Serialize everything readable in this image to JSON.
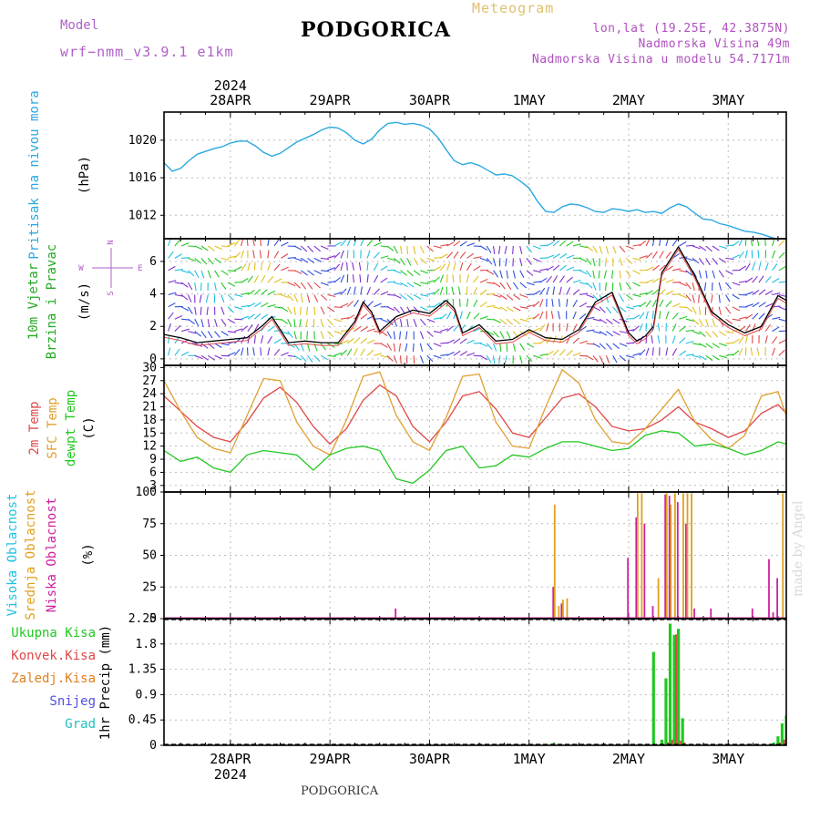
{
  "header": {
    "title": "PODGORICA",
    "subtitle": "Meteogram",
    "model_label": "Model",
    "model_name": "wrf−nmm_v3.9.1  e1km",
    "location_lines": [
      "lon,lat (19.25E, 42.3875N)",
      "Nadmorska Visina 49m",
      "Nadmorska Visina u modelu 54.7171m"
    ],
    "bottom_station": "PODGORICA",
    "credit": "made by Angel"
  },
  "colors": {
    "pressure": "#2aa8e0",
    "temp2m": "#e04848",
    "sfc": "#e0a030",
    "dewpt": "#22c822",
    "low_cloud": "#d020a0",
    "mid_cloud": "#e0a020",
    "high_cloud": "#20c0e0",
    "precip_total": "#22c822",
    "precip_conv": "#e04848",
    "precip_frozen": "#e08020",
    "snow": "#5050e0",
    "grad": "#20c0c0",
    "wind_label": "#22aa22",
    "wind_dir_label": "#b060c8"
  },
  "time_axis": {
    "top_year": "2024",
    "bottom_year": "2024",
    "labels": [
      "28APR",
      "29APR",
      "30APR",
      "1MAY",
      "2MAY",
      "3MAY"
    ],
    "hours_span": [
      -16,
      134
    ]
  },
  "chart_data": [
    {
      "type": "line",
      "title": "",
      "ylabel_left": "Pritisak na nivou mora",
      "ylabel_unit": "(hPa)",
      "ylim": [
        1009.5,
        1023
      ],
      "yticks": [
        1012,
        1016,
        1020
      ],
      "grid": true,
      "series": [
        {
          "name": "Pritisak na nivou mora",
          "x": [
            -16,
            -14,
            -12,
            -10,
            -8,
            -6,
            -4,
            -2,
            0,
            2,
            4,
            6,
            8,
            10,
            12,
            14,
            16,
            18,
            20,
            22,
            24,
            26,
            28,
            30,
            32,
            34,
            36,
            38,
            40,
            42,
            44,
            46,
            48,
            50,
            52,
            54,
            56,
            58,
            60,
            62,
            64,
            66,
            68,
            70,
            72,
            74,
            76,
            78,
            80,
            82,
            84,
            86,
            88,
            90,
            92,
            94,
            96,
            98,
            100,
            102,
            104,
            106,
            108,
            110,
            112,
            114,
            116,
            118,
            120,
            122,
            124,
            126,
            128,
            130,
            132,
            134
          ],
          "y": [
            1017.6,
            1016.7,
            1017.0,
            1017.8,
            1018.5,
            1018.8,
            1019.1,
            1019.3,
            1019.7,
            1019.9,
            1019.9,
            1019.4,
            1018.7,
            1018.3,
            1018.6,
            1019.2,
            1019.8,
            1020.2,
            1020.6,
            1021.1,
            1021.4,
            1021.3,
            1020.8,
            1020.0,
            1019.6,
            1020.1,
            1021.1,
            1021.8,
            1021.9,
            1021.7,
            1021.8,
            1021.6,
            1021.2,
            1020.3,
            1019.0,
            1017.8,
            1017.4,
            1017.6,
            1017.3,
            1016.8,
            1016.3,
            1016.4,
            1016.2,
            1015.6,
            1014.9,
            1013.5,
            1012.4,
            1012.3,
            1012.9,
            1013.2,
            1013.1,
            1012.8,
            1012.4,
            1012.3,
            1012.7,
            1012.6,
            1012.4,
            1012.6,
            1012.3,
            1012.4,
            1012.2,
            1012.8,
            1013.2,
            1012.9,
            1012.2,
            1011.6,
            1011.5,
            1011.1,
            1010.9,
            1010.6,
            1010.3,
            1010.2,
            1010.0,
            1009.7,
            1009.4,
            1009.4
          ]
        }
      ]
    },
    {
      "type": "line",
      "title": "",
      "ylabel_left": [
        "10m Vjetar",
        "Brzina i Pravac"
      ],
      "ylabel_unit": "(m/s)",
      "direction_legend": [
        "N",
        "W",
        "E",
        "S"
      ],
      "ylim": [
        -0.4,
        7.4
      ],
      "yticks": [
        0,
        2,
        4,
        6
      ],
      "grid": true,
      "series": [
        {
          "name": "speed",
          "x": [
            -16,
            -12,
            -8,
            -4,
            0,
            4,
            8,
            10,
            12,
            14,
            18,
            22,
            26,
            30,
            32,
            34,
            36,
            40,
            44,
            48,
            52,
            54,
            56,
            60,
            64,
            68,
            72,
            76,
            80,
            84,
            88,
            92,
            96,
            98,
            100,
            102,
            104,
            108,
            112,
            116,
            120,
            124,
            128,
            132,
            134
          ],
          "y": [
            1.5,
            1.3,
            1.0,
            1.1,
            1.2,
            1.3,
            2.1,
            2.6,
            1.8,
            1.0,
            1.1,
            1.0,
            1.0,
            2.3,
            3.5,
            2.9,
            1.7,
            2.6,
            3.0,
            2.8,
            3.6,
            3.1,
            1.6,
            2.1,
            1.1,
            1.2,
            1.8,
            1.3,
            1.2,
            1.8,
            3.5,
            4.1,
            1.6,
            1.1,
            1.4,
            2.0,
            5.3,
            6.9,
            5.1,
            2.9,
            2.1,
            1.6,
            2.0,
            3.9,
            3.6
          ]
        }
      ]
    },
    {
      "type": "line",
      "title": "",
      "ylabel_left": [
        "2m Temp",
        "SFC Temp",
        "dewpt Temp"
      ],
      "ylabel_unit": "(C)",
      "ylim": [
        1.5,
        30.5
      ],
      "yticks": [
        3,
        6,
        9,
        12,
        15,
        18,
        21,
        24,
        27,
        30
      ],
      "grid": true,
      "series": [
        {
          "name": "2m Temp",
          "x": [
            -16,
            -12,
            -8,
            -4,
            0,
            4,
            8,
            12,
            16,
            20,
            24,
            28,
            32,
            36,
            40,
            44,
            48,
            52,
            56,
            60,
            64,
            68,
            72,
            76,
            80,
            84,
            88,
            92,
            96,
            100,
            104,
            108,
            112,
            116,
            120,
            124,
            128,
            132,
            134
          ],
          "y": [
            23.5,
            20.0,
            16.5,
            14.0,
            13.0,
            17.5,
            23.0,
            25.5,
            22.0,
            16.5,
            12.5,
            16.0,
            22.5,
            26.0,
            23.5,
            16.5,
            13.0,
            17.5,
            23.5,
            24.5,
            20.5,
            15.0,
            14.0,
            18.5,
            23.0,
            24.0,
            21.0,
            16.5,
            15.5,
            16.0,
            18.0,
            21.0,
            17.5,
            16.0,
            14.0,
            15.5,
            19.5,
            21.5,
            19.5
          ]
        },
        {
          "name": "SFC Temp",
          "x": [
            -16,
            -12,
            -8,
            -4,
            0,
            4,
            8,
            12,
            16,
            20,
            24,
            28,
            32,
            36,
            40,
            44,
            48,
            52,
            56,
            60,
            64,
            68,
            72,
            76,
            80,
            84,
            88,
            92,
            96,
            100,
            104,
            108,
            112,
            116,
            120,
            124,
            128,
            132,
            134
          ],
          "y": [
            27.0,
            20.0,
            14.0,
            11.5,
            10.5,
            19.0,
            27.5,
            27.0,
            17.5,
            12.0,
            10.0,
            18.0,
            28.0,
            29.0,
            19.0,
            13.0,
            11.0,
            18.5,
            28.0,
            28.5,
            17.5,
            12.0,
            11.5,
            21.0,
            29.5,
            26.5,
            18.0,
            13.0,
            12.5,
            16.0,
            20.5,
            25.0,
            17.5,
            13.5,
            11.5,
            14.5,
            23.5,
            24.5,
            19.0
          ]
        },
        {
          "name": "dewpt Temp",
          "x": [
            -16,
            -12,
            -8,
            -4,
            0,
            4,
            8,
            12,
            16,
            20,
            24,
            28,
            32,
            36,
            40,
            44,
            48,
            52,
            56,
            60,
            64,
            68,
            72,
            76,
            80,
            84,
            88,
            92,
            96,
            100,
            104,
            108,
            112,
            116,
            120,
            124,
            128,
            132,
            134
          ],
          "y": [
            11.0,
            8.5,
            9.5,
            7.0,
            6.0,
            10.0,
            11.0,
            10.5,
            10.0,
            6.5,
            10.0,
            11.5,
            12.0,
            11.0,
            4.5,
            3.5,
            6.5,
            11.0,
            12.0,
            7.0,
            7.5,
            10.0,
            9.5,
            11.5,
            13.0,
            13.0,
            12.0,
            11.0,
            11.5,
            14.5,
            15.5,
            15.0,
            12.0,
            12.5,
            11.5,
            10.0,
            11.0,
            13.0,
            12.5
          ]
        }
      ]
    },
    {
      "type": "bar",
      "title": "",
      "ylabel_left": [
        "Visoka Oblacnost",
        "Srednja Oblacnost",
        "Niska Oblacnost"
      ],
      "ylabel_unit": "(%)",
      "ylim": [
        0,
        100
      ],
      "yticks": [
        0,
        25,
        50,
        75,
        100
      ],
      "grid": true,
      "series": [
        {
          "name": "Niska Oblacnost",
          "x": [
            40,
            78,
            80,
            96,
            98,
            100,
            102,
            105,
            106,
            108,
            110,
            112,
            116,
            126,
            130,
            131,
            132
          ],
          "values": [
            8,
            25,
            12,
            48,
            80,
            75,
            10,
            98,
            97,
            92,
            75,
            8,
            8,
            8,
            47,
            5,
            32
          ]
        },
        {
          "name": "Srednja Oblacnost",
          "x": [
            78,
            79,
            80,
            81,
            98,
            99,
            103,
            105,
            106,
            107,
            109,
            110,
            111,
            133,
            134
          ],
          "values": [
            90,
            10,
            15,
            16,
            99,
            99,
            32,
            99,
            90,
            99,
            99,
            99,
            99,
            99,
            97
          ]
        },
        {
          "name": "Visoka Oblacnost",
          "x": [],
          "values": []
        }
      ]
    },
    {
      "type": "bar",
      "title": "",
      "ylabel_left": [
        "Ukupna Kisa",
        "Konvek.Kisa",
        "Zaledj.Kisa",
        "Snijeg",
        "Grad"
      ],
      "ylabel_unit": "1hr Precip (mm)",
      "ylim": [
        0,
        2.25
      ],
      "yticks": [
        0,
        0.45,
        0.9,
        1.35,
        1.8,
        2.25
      ],
      "grid": true,
      "series": [
        {
          "name": "Ukupna Kisa",
          "x": [
            78,
            102,
            104,
            105,
            106,
            107,
            108,
            109,
            110,
            131,
            132,
            133,
            134
          ],
          "values": [
            0.04,
            1.66,
            0.1,
            1.19,
            2.16,
            1.96,
            2.07,
            0.48,
            0.02,
            0.05,
            0.16,
            0.39,
            0.53
          ]
        },
        {
          "name": "Konvek.Kisa",
          "x": [
            104,
            105,
            106,
            107,
            108,
            109,
            131,
            132,
            133,
            134
          ],
          "values": [
            0.02,
            0.05,
            0.1,
            1.97,
            0.08,
            0.05,
            0.02,
            0.05,
            0.1,
            0.1
          ]
        },
        {
          "name": "Zaledj.Kisa",
          "x": [],
          "values": []
        },
        {
          "name": "Snijeg",
          "x": [],
          "values": []
        },
        {
          "name": "Grad",
          "x": [],
          "values": []
        }
      ]
    }
  ]
}
